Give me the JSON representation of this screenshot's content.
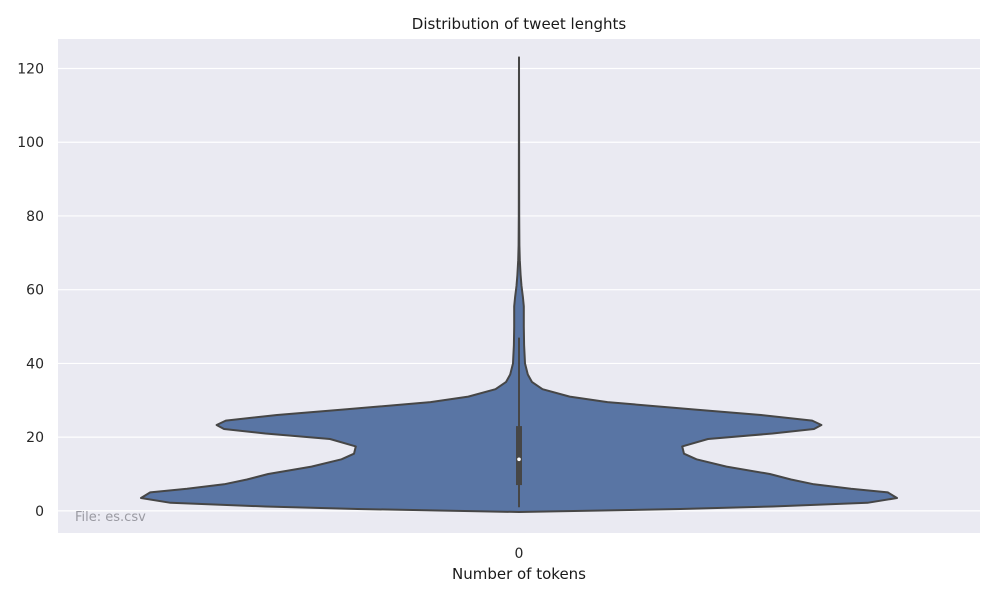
{
  "chart_data": {
    "type": "violin",
    "title": "Distribution of tweet lenghts",
    "xlabel": "Number of tokens",
    "ylabel": "",
    "categories": [
      "0"
    ],
    "ylim": [
      -6,
      128
    ],
    "yticks": [
      0,
      20,
      40,
      60,
      80,
      100,
      120
    ],
    "grid": true,
    "annotation": "File: es.csv",
    "colors": {
      "background": "#EAEAF2",
      "violin_fill": "#5975A4",
      "outline": "#464646",
      "grid": "#FFFFFF",
      "median": "#FFFFFF"
    },
    "summary": {
      "min": 1,
      "q1": 7,
      "median": 14,
      "q3": 23,
      "whisker_high": 47,
      "max": 123
    },
    "density_profile": [
      {
        "y": -0.3,
        "width": 0.0
      },
      {
        "y": 0.5,
        "width": 0.35
      },
      {
        "y": 1.2,
        "width": 0.55
      },
      {
        "y": 2.2,
        "width": 0.756
      },
      {
        "y": 3.5,
        "width": 0.82
      },
      {
        "y": 5.0,
        "width": 0.8
      },
      {
        "y": 6.0,
        "width": 0.72
      },
      {
        "y": 7.2,
        "width": 0.64
      },
      {
        "y": 8.5,
        "width": 0.59
      },
      {
        "y": 10.0,
        "width": 0.544
      },
      {
        "y": 12.0,
        "width": 0.45
      },
      {
        "y": 14.0,
        "width": 0.385
      },
      {
        "y": 15.5,
        "width": 0.358
      },
      {
        "y": 17.5,
        "width": 0.354
      },
      {
        "y": 19.5,
        "width": 0.41
      },
      {
        "y": 21.0,
        "width": 0.55
      },
      {
        "y": 22.2,
        "width": 0.64
      },
      {
        "y": 23.3,
        "width": 0.656
      },
      {
        "y": 24.5,
        "width": 0.636
      },
      {
        "y": 26.0,
        "width": 0.525
      },
      {
        "y": 27.5,
        "width": 0.38
      },
      {
        "y": 29.5,
        "width": 0.192
      },
      {
        "y": 31.0,
        "width": 0.11
      },
      {
        "y": 33.0,
        "width": 0.051
      },
      {
        "y": 35.0,
        "width": 0.028
      },
      {
        "y": 37.0,
        "width": 0.019
      },
      {
        "y": 40.0,
        "width": 0.013
      },
      {
        "y": 45.0,
        "width": 0.011
      },
      {
        "y": 50.0,
        "width": 0.0105
      },
      {
        "y": 55.5,
        "width": 0.0105
      },
      {
        "y": 58.0,
        "width": 0.0085
      },
      {
        "y": 61.0,
        "width": 0.0055
      },
      {
        "y": 64.0,
        "width": 0.0035
      },
      {
        "y": 68.0,
        "width": 0.0018
      },
      {
        "y": 72.0,
        "width": 0.0008
      },
      {
        "y": 80.0,
        "width": 0.0004
      },
      {
        "y": 100.0,
        "width": 0.0002
      },
      {
        "y": 123.0,
        "width": 0.0
      }
    ]
  }
}
